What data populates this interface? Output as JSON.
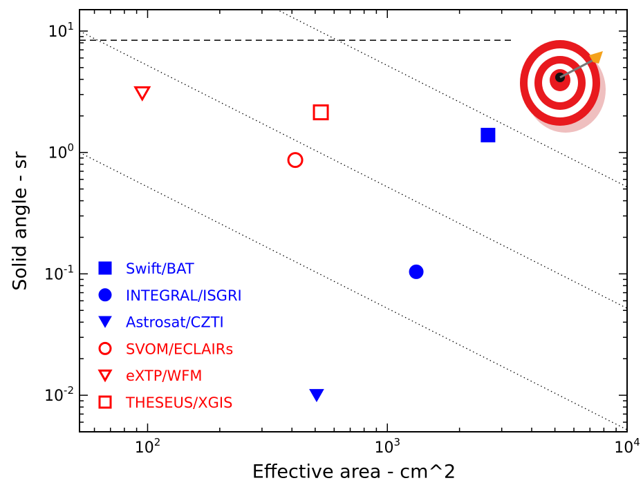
{
  "chart_data": {
    "type": "scatter",
    "x_label": "Effective area - cm^2",
    "y_label": "Solid angle - sr",
    "xscale": "log",
    "yscale": "log",
    "xlim": [
      52,
      10000
    ],
    "ylim": [
      0.005,
      15
    ],
    "xticks": [
      {
        "value": 100,
        "label": "10^2"
      },
      {
        "value": 1000,
        "label": "10^3"
      },
      {
        "value": 10000,
        "label": "10^4"
      }
    ],
    "yticks": [
      {
        "value": 0.01,
        "label": "10^-2"
      },
      {
        "value": 0.1,
        "label": "10^-1"
      },
      {
        "value": 1,
        "label": "10^0"
      },
      {
        "value": 10,
        "label": "10^1"
      }
    ],
    "minor_ticks": true,
    "series": [
      {
        "name": "Swift/BAT",
        "color": "#0000ff",
        "marker": "square",
        "filled": true,
        "x": [
          2630
        ],
        "y": [
          1.39
        ]
      },
      {
        "name": "INTEGRAL/ISGRI",
        "color": "#0000ff",
        "marker": "circle",
        "filled": true,
        "x": [
          1320
        ],
        "y": [
          0.104
        ]
      },
      {
        "name": "Astrosat/CZTI",
        "color": "#0000ff",
        "marker": "triangle-down",
        "filled": true,
        "x": [
          507
        ],
        "y": [
          0.01
        ]
      },
      {
        "name": "SVOM/ECLAIRs",
        "color": "#ff0000",
        "marker": "circle",
        "filled": false,
        "x": [
          413
        ],
        "y": [
          0.866
        ]
      },
      {
        "name": "eXTP/WFM",
        "color": "#ff0000",
        "marker": "triangle-down",
        "filled": false,
        "x": [
          95
        ],
        "y": [
          3.08
        ]
      },
      {
        "name": "THESEUS/XGIS",
        "color": "#ff0000",
        "marker": "square",
        "filled": false,
        "x": [
          528
        ],
        "y": [
          2.14
        ]
      }
    ],
    "iso_products": [
      52,
      520,
      5200
    ],
    "dashed_line": {
      "y": 8.4,
      "x": [
        52,
        3300
      ]
    }
  }
}
